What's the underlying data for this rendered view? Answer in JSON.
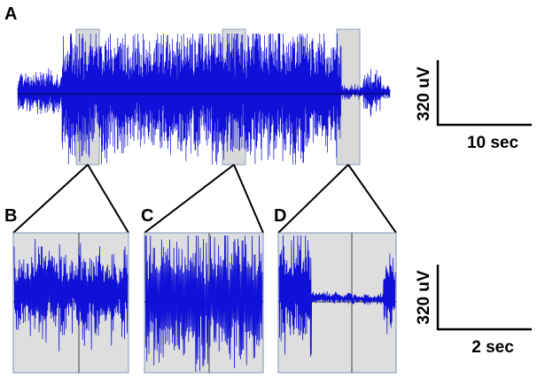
{
  "figure": {
    "panel_labels": {
      "a": "A",
      "b": "B",
      "c": "C",
      "d": "D"
    },
    "scalebars": {
      "top_amplitude": "320 uV",
      "top_time": "10 sec",
      "bottom_amplitude": "320 uV",
      "bottom_time": "2 sec"
    }
  },
  "colors": {
    "trace": "#1010d8",
    "highlight": "#d9d9d9",
    "highlight_border": "#8aa0bc",
    "zoom_box_bg": "#dedede",
    "zoom_box_border": "#7e96b8",
    "baseline": "#000000",
    "connector": "#000000"
  },
  "chart_data": {
    "type": "line",
    "description": "EEG trace",
    "overview": {
      "panel": "A",
      "highlighted_windows": 3
    },
    "zoom_panels": [
      {
        "panel": "B",
        "pattern": "moderate irregular activity"
      },
      {
        "panel": "C",
        "pattern": "high-amplitude dense spiking"
      },
      {
        "panel": "D",
        "pattern": "burst then suppression then burst"
      }
    ]
  }
}
